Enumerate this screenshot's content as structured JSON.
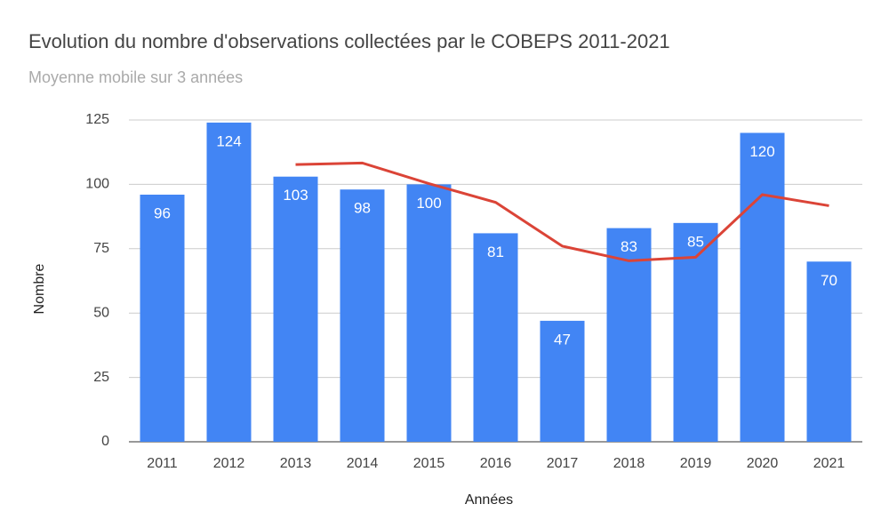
{
  "chart_data": {
    "type": "bar",
    "title": "Evolution du nombre d'observations collectées par le COBEPS 2011-2021",
    "subtitle": "Moyenne mobile sur 3 années",
    "x_label": "Années",
    "y_label": "Nombre",
    "categories": [
      "2011",
      "2012",
      "2013",
      "2014",
      "2015",
      "2016",
      "2017",
      "2018",
      "2019",
      "2020",
      "2021"
    ],
    "series": [
      {
        "type": "bar",
        "color": "#4285f4",
        "values": [
          96,
          124,
          103,
          98,
          100,
          81,
          47,
          83,
          85,
          120,
          70
        ]
      },
      {
        "type": "line",
        "color": "#db4437",
        "values": [
          null,
          null,
          107.7,
          108.3,
          100.3,
          93,
          76,
          70.3,
          71.7,
          96,
          91.7
        ]
      }
    ],
    "ylim": [
      0,
      125
    ],
    "yticks": [
      0,
      25,
      50,
      75,
      100,
      125
    ],
    "grid": true
  }
}
